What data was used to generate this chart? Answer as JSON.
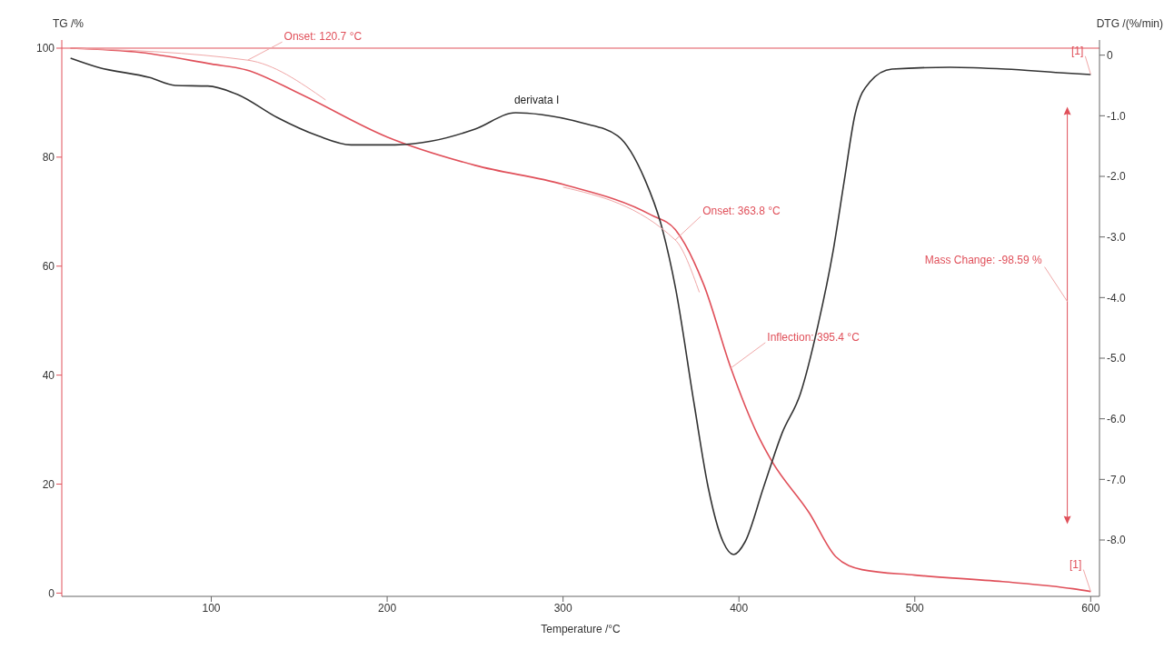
{
  "chart_data": {
    "type": "line",
    "xlabel": "Temperature /°C",
    "ylabel": "TG /%",
    "y2label": "DTG /(%/min)",
    "xlim": [
      15,
      605
    ],
    "xticks": [
      100,
      200,
      300,
      400,
      500,
      600
    ],
    "ylim": [
      -0.6,
      101.5
    ],
    "yticks": [
      0,
      20,
      40,
      60,
      80,
      100
    ],
    "y2lim": [
      -8.93,
      0.25
    ],
    "y2ticks": [
      0,
      {
        "value": -1,
        "label": "-1.0"
      },
      {
        "value": -2,
        "label": "-2.0"
      },
      {
        "value": -3,
        "label": "-3.0"
      },
      {
        "value": -4,
        "label": "-4.0"
      },
      {
        "value": -5,
        "label": "-5.0"
      },
      {
        "value": -6,
        "label": "-6.0"
      },
      {
        "value": -7,
        "label": "-7.0"
      },
      {
        "value": -8,
        "label": "-8.0"
      }
    ],
    "marker": "none",
    "line_style": "solid",
    "series": [
      {
        "color": "#e0505a",
        "x": [
          20,
          60,
          100,
          120,
          150,
          200,
          250,
          300,
          350,
          363.8,
          380,
          395.4,
          410,
          418,
          440,
          455,
          470,
          500,
          550,
          590,
          600
        ],
        "values": [
          100,
          99.2,
          97.1,
          96,
          91.7,
          83.7,
          78.5,
          75,
          69.4,
          66.7,
          56.6,
          41.3,
          29.5,
          24.6,
          14.7,
          6.7,
          4.3,
          3.3,
          2.1,
          0.8,
          0.3
        ]
      },
      {
        "color": "#333333",
        "axis": "y2",
        "x": [
          20,
          35.5,
          65,
          79.5,
          98,
          115,
          137.5,
          160.5,
          179.5,
          204.5,
          225,
          250,
          273,
          287.5,
          311,
          331,
          346.5,
          355.5,
          364,
          374.5,
          382.5,
          391,
          397,
          403.5,
          414,
          424.5,
          435,
          445,
          453.5,
          460,
          466,
          474.5,
          487,
          520,
          551.5,
          582.5,
          600
        ],
        "values": [
          -0.05,
          -0.2,
          -0.37,
          -0.5,
          -0.51,
          -0.65,
          -1.03,
          -1.33,
          -1.48,
          -1.48,
          -1.42,
          -1.22,
          -0.95,
          -0.98,
          -1.12,
          -1.33,
          -2.05,
          -2.77,
          -3.85,
          -5.75,
          -7.13,
          -8.03,
          -8.24,
          -8.03,
          -7.13,
          -6.24,
          -5.58,
          -4.45,
          -3.24,
          -2.05,
          -0.98,
          -0.44,
          -0.23,
          -0.2,
          -0.23,
          -0.29,
          -0.32
        ]
      },
      {
        "color": "#f0a8a8",
        "x": [
          20,
          120.7,
          165
        ],
        "values": [
          100,
          97.8,
          90.5
        ]
      },
      {
        "color": "#f0a8a8",
        "x": [
          300,
          363.8,
          377.5
        ],
        "values": [
          74.5,
          64.8,
          55.2
        ]
      }
    ],
    "ref_lines": [
      {
        "axis": "y",
        "value": 100,
        "color": "#e0505a"
      }
    ],
    "annotations": [
      {
        "text": "Onset: 120.7 °C",
        "x": 120.7,
        "y": 97.8
      },
      {
        "text": "derivata I",
        "x": 285,
        "y": 88.8
      },
      {
        "text": "Onset: 363.8 °C",
        "x": 363.8,
        "y": 64.8
      },
      {
        "text": "Inflection: 395.4 °C",
        "x": 395.4,
        "y": 41.3
      },
      "Mass Change: -98.59 %",
      {
        "text": "[1]",
        "x": 600,
        "y": 95.2
      },
      {
        "text": "[1]",
        "x": 600,
        "y": 0.3
      }
    ]
  }
}
